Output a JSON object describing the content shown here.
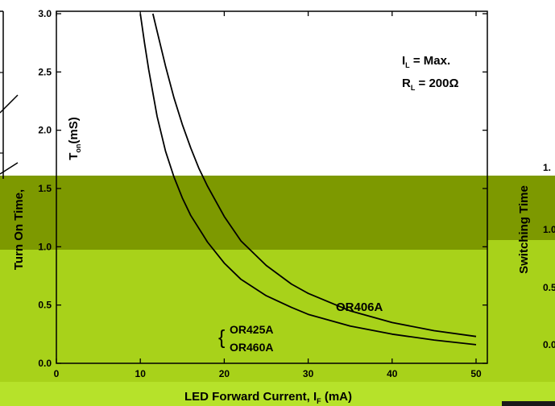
{
  "chart_data": {
    "type": "line",
    "xlabel": "LED Forward Current, I",
    "xlabel_sub": "F",
    "xlabel_unit": " (mA)",
    "ylabel": "Turn On Time,",
    "ylabel_inner": "T",
    "ylabel_inner_sub": "on",
    "ylabel_inner_unit": "(mS)",
    "right_label": "Switching Time",
    "right_ticks": [
      "1.",
      "1.0",
      "0.5",
      "0.0"
    ],
    "xlim": [
      0,
      50
    ],
    "ylim": [
      0,
      3.0
    ],
    "x_ticks": [
      "0",
      "10",
      "20",
      "30",
      "40",
      "50"
    ],
    "y_ticks": [
      "0.0",
      "0.5",
      "1.0",
      "1.5",
      "2.0",
      "2.5",
      "3.0"
    ],
    "conditions": {
      "il_prefix": "I",
      "il_sub": "L",
      "il_value": " = Max.",
      "rl_prefix": "R",
      "rl_sub": "L",
      "rl_value": " = 200Ω"
    },
    "annotations": [
      "OR406A",
      "OR425A",
      "OR460A"
    ],
    "series": [
      {
        "name": "OR406A",
        "x": [
          11.5,
          12,
          13,
          14,
          15,
          16,
          17,
          18,
          20,
          22,
          25,
          28,
          30,
          35,
          40,
          45,
          50
        ],
        "y": [
          3.0,
          2.85,
          2.55,
          2.28,
          2.05,
          1.85,
          1.67,
          1.52,
          1.26,
          1.05,
          0.84,
          0.68,
          0.6,
          0.45,
          0.35,
          0.28,
          0.23
        ]
      },
      {
        "name": "OR425A / OR460A",
        "x": [
          10,
          10.5,
          11,
          12,
          13,
          14,
          15,
          16,
          18,
          20,
          22,
          25,
          28,
          30,
          35,
          40,
          45,
          50
        ],
        "y": [
          3.0,
          2.75,
          2.52,
          2.12,
          1.82,
          1.6,
          1.42,
          1.27,
          1.04,
          0.86,
          0.72,
          0.58,
          0.48,
          0.42,
          0.32,
          0.25,
          0.2,
          0.16
        ]
      }
    ]
  }
}
